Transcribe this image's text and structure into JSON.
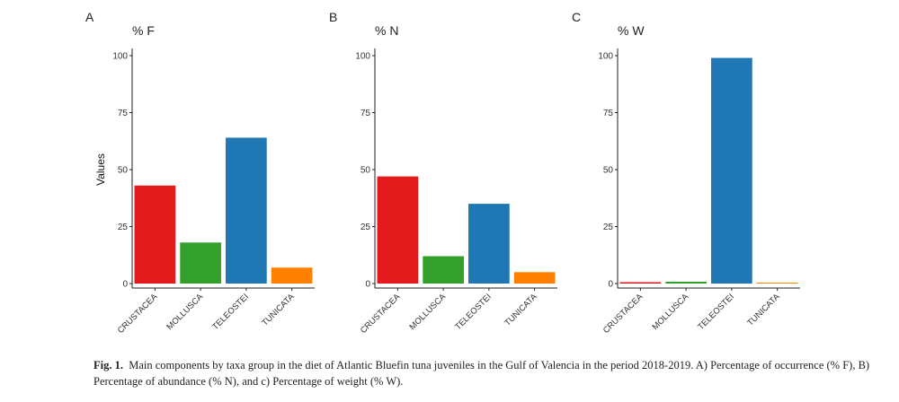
{
  "chart_data": [
    {
      "type": "bar",
      "panel": "A",
      "title": "% F",
      "ylabel": "Values",
      "xlabel": "",
      "categories": [
        "CRUSTACEA",
        "MOLLUSCA",
        "TELEOSTEI",
        "TUNICATA"
      ],
      "values": [
        43,
        18,
        64,
        7
      ],
      "colors": [
        "#e31a1c",
        "#33a02c",
        "#1f78b4",
        "#ff7f00"
      ],
      "ylim": [
        0,
        100
      ],
      "yticks": [
        0,
        25,
        50,
        75,
        100
      ],
      "grid": false
    },
    {
      "type": "bar",
      "panel": "B",
      "title": "% N",
      "ylabel": "",
      "xlabel": "",
      "categories": [
        "CRUSTACEA",
        "MOLLUSCA",
        "TELEOSTEI",
        "TUNICATA"
      ],
      "values": [
        47,
        12,
        35,
        5
      ],
      "colors": [
        "#e31a1c",
        "#33a02c",
        "#1f78b4",
        "#ff7f00"
      ],
      "ylim": [
        0,
        100
      ],
      "yticks": [
        0,
        25,
        50,
        75,
        100
      ],
      "grid": false
    },
    {
      "type": "bar",
      "panel": "C",
      "title": "% W",
      "ylabel": "",
      "xlabel": "",
      "categories": [
        "CRUSTACEA",
        "MOLLUSCA",
        "TELEOSTEI",
        "TUNICATA"
      ],
      "values": [
        0.6,
        0.8,
        99,
        0.2
      ],
      "colors": [
        "#e31a1c",
        "#33a02c",
        "#1f78b4",
        "#ff7f00"
      ],
      "ylim": [
        0,
        100
      ],
      "yticks": [
        0,
        25,
        50,
        75,
        100
      ],
      "grid": false
    }
  ],
  "caption": {
    "label": "Fig. 1.",
    "text": "Main components by taxa group in the diet of Atlantic Bluefin tuna juveniles in the Gulf of Valencia in the period 2018-2019. A) Percentage of occurrence (% F), B) Percentage of abundance (% N), and c) Percentage of weight (% W)."
  }
}
